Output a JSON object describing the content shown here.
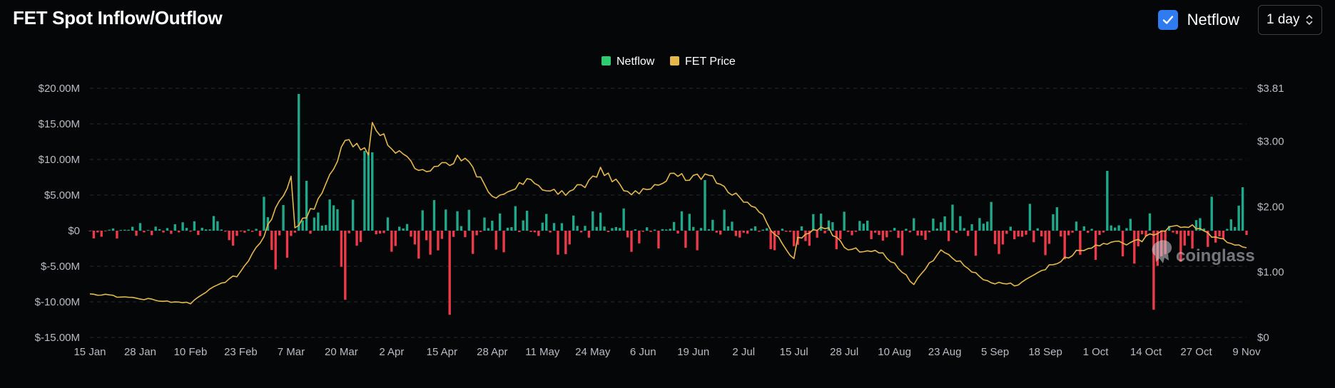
{
  "header": {
    "title": "FET Spot Inflow/Outflow",
    "checkbox_label": "Netflow",
    "checkbox_checked": true,
    "interval": "1 day"
  },
  "colors": {
    "netflow_positive": "#1fa88a",
    "netflow_negative": "#ec3a48",
    "price_line": "#e6b84c",
    "checkbox": "#2f7bf0",
    "grid": "#262a31",
    "background": "#050608"
  },
  "icons": {
    "checkbox": "checkmark-icon",
    "select": "chevron-up-down-icon",
    "watermark": "coinglass-logo"
  },
  "chart_data": {
    "type": "bar+line",
    "title": "FET Spot Inflow/Outflow",
    "legend": {
      "position": "top-center",
      "entries": [
        {
          "name": "Netflow",
          "color": "#2ecc71"
        },
        {
          "name": "FET Price",
          "color": "#e6b84c"
        }
      ]
    },
    "watermark": "coinglass",
    "grid": true,
    "left_axis": {
      "ticks": [
        "$20.00M",
        "$15.00M",
        "$10.00M",
        "$5.00M",
        "$0",
        "$-5.00M",
        "$-10.00M",
        "$-15.00M"
      ],
      "tick_values": [
        20,
        15,
        10,
        5,
        0,
        -5,
        -10,
        -15
      ],
      "unit": "M USD",
      "ylim": [
        -15,
        20
      ]
    },
    "right_axis": {
      "ticks": [
        "$3.81",
        "$3.00",
        "$2.00",
        "$1.00",
        "$0"
      ],
      "tick_values": [
        3.81,
        3.0,
        2.0,
        1.0,
        0
      ],
      "ylim": [
        0,
        3.81
      ]
    },
    "x_axis": {
      "ticks": [
        "15 Jan",
        "28 Jan",
        "10 Feb",
        "23 Feb",
        "7 Mar",
        "20 Mar",
        "2 Apr",
        "15 Apr",
        "28 Apr",
        "11 May",
        "24 May",
        "6 Jun",
        "19 Jun",
        "2 Jul",
        "15 Jul",
        "28 Jul",
        "10 Aug",
        "23 Aug",
        "5 Sep",
        "18 Sep",
        "1 Oct",
        "14 Oct",
        "27 Oct",
        "9 Nov"
      ],
      "start": "15 Jan",
      "end": "9 Nov",
      "days": 299
    },
    "series": [
      {
        "name": "Netflow",
        "type": "bar",
        "unit": "M USD",
        "notable_points": [
          {
            "date": "9 Mar",
            "value": 19.2
          },
          {
            "date": "11 Mar",
            "value": 7.0
          },
          {
            "date": "26 Mar",
            "value": 11.2
          },
          {
            "date": "27 Mar",
            "value": 11.0
          },
          {
            "date": "28 Mar",
            "value": 11.0
          },
          {
            "date": "21 Mar",
            "value": -9.7
          },
          {
            "date": "17 Apr",
            "value": -11.8
          },
          {
            "date": "22 Jun",
            "value": 7.1
          },
          {
            "date": "4 Oct",
            "value": 8.4
          },
          {
            "date": "16 Oct",
            "value": -11.1
          },
          {
            "date": "8 Nov",
            "value": 6.1
          }
        ]
      },
      {
        "name": "FET Price",
        "type": "line",
        "unit": "USD",
        "notable_points": [
          {
            "date": "15 Jan",
            "value": 0.67
          },
          {
            "date": "10 Feb",
            "value": 0.52
          },
          {
            "date": "7 Mar",
            "value": 2.45
          },
          {
            "date": "28 Mar",
            "value": 3.25
          },
          {
            "date": "26 May",
            "value": 2.55
          },
          {
            "date": "15 Jul",
            "value": 1.2
          },
          {
            "date": "15 Aug",
            "value": 0.82
          },
          {
            "date": "9 Nov",
            "value": 1.35
          }
        ]
      }
    ]
  }
}
